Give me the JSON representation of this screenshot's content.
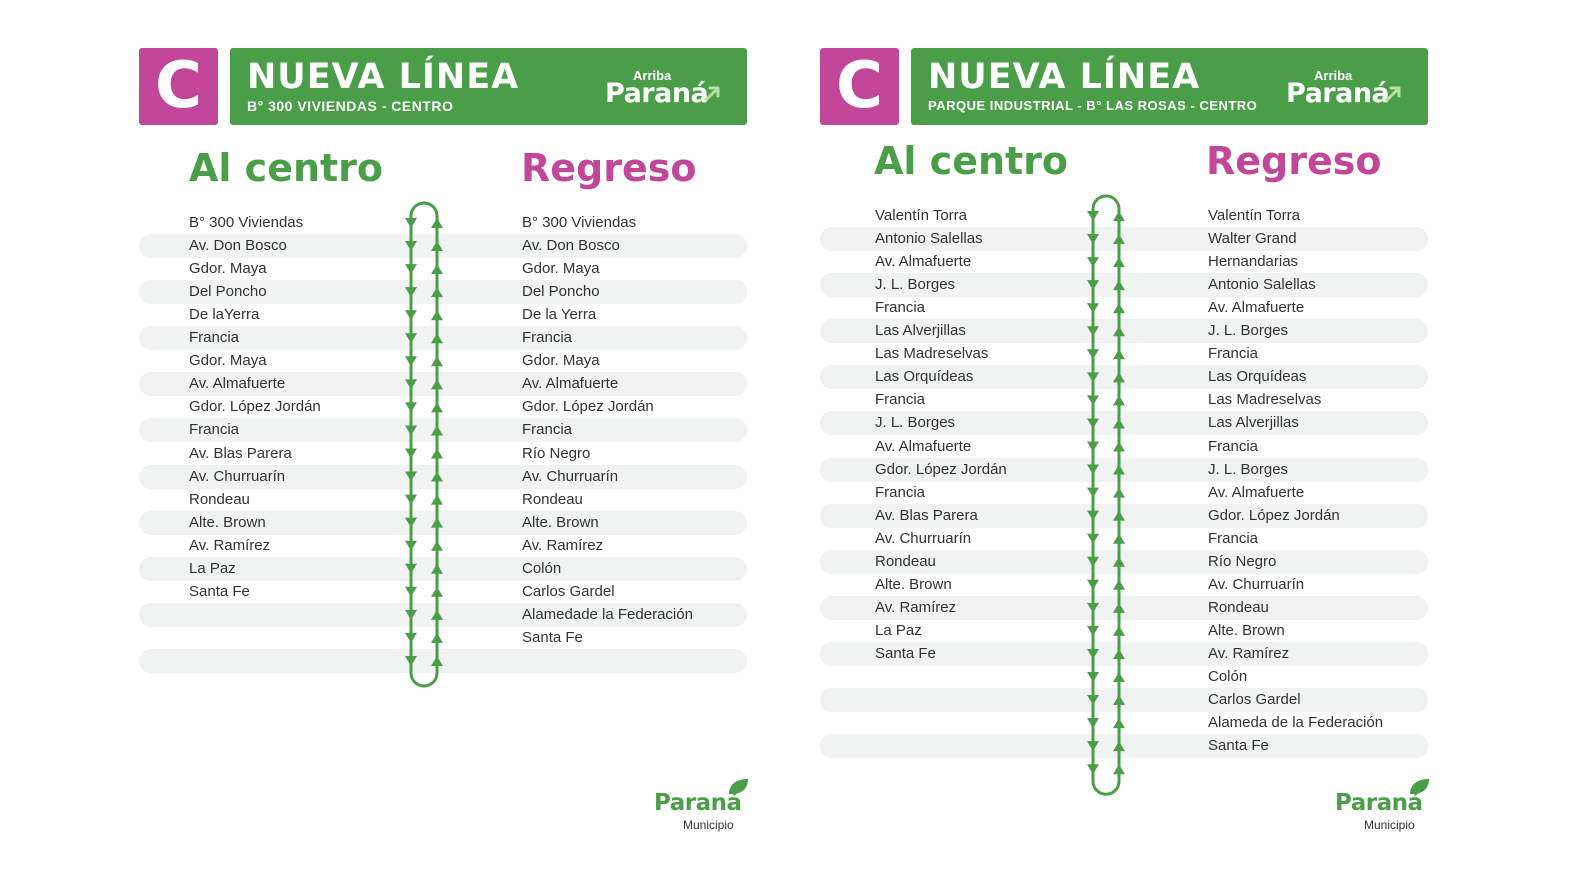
{
  "routes": [
    {
      "badge": "C",
      "title": "NUEVA LÍNEA",
      "subtitle": "B° 300 VIVIENDAS - CENTRO",
      "brand_top": "Arriba",
      "brand_name": "Paraná",
      "outbound_title": "Al centro",
      "return_title": "Regreso",
      "outbound": [
        "B° 300 Viviendas",
        "Av. Don Bosco",
        "Gdor. Maya",
        "Del Poncho",
        "De laYerra",
        "Francia",
        "Gdor. Maya",
        "Av. Almafuerte",
        "Gdor. López Jordán",
        "Francia",
        "Av. Blas Parera",
        "Av. Churruarín",
        "Rondeau",
        "Alte. Brown",
        "Av. Ramírez",
        "La Paz",
        "Santa Fe"
      ],
      "return": [
        "B° 300 Viviendas",
        "Av. Don Bosco",
        "Gdor. Maya",
        "Del Poncho",
        "De la Yerra",
        "Francia",
        "Gdor. Maya",
        "Av. Almafuerte",
        "Gdor. López Jordán",
        "Francia",
        "Río Negro",
        "Av. Churruarín",
        "Rondeau",
        "Alte. Brown",
        "Av. Ramírez",
        "Colón",
        "Carlos Gardel",
        "Alamedade la Federación",
        "Santa Fe"
      ],
      "footer_name": "Paraná",
      "footer_sub": "Municipio"
    },
    {
      "badge": "C",
      "title": "NUEVA LÍNEA",
      "subtitle": "PARQUE INDUSTRIAL - B° LAS ROSAS - CENTRO",
      "brand_top": "Arriba",
      "brand_name": "Paraná",
      "outbound_title": "Al centro",
      "return_title": "Regreso",
      "outbound": [
        "Valentín Torra",
        "Antonio Salellas",
        "Av. Almafuerte",
        "J. L. Borges",
        "Francia",
        "Las Alverjillas",
        "Las Madreselvas",
        "Las Orquídeas",
        "Francia",
        "J. L. Borges",
        "Av. Almafuerte",
        "Gdor. López Jordán",
        "Francia",
        "Av. Blas Parera",
        "Av. Churruarín",
        "Rondeau",
        "Alte. Brown",
        "Av. Ramírez",
        "La Paz",
        "Santa Fe"
      ],
      "return": [
        "Valentín Torra",
        "Walter Grand",
        "Hernandarias",
        "Antonio Salellas",
        "Av. Almafuerte",
        "J. L. Borges",
        "Francia",
        "Las Orquídeas",
        "Las Madreselvas",
        "Las Alverjillas",
        "Francia",
        "J. L. Borges",
        "Av. Almafuerte",
        "Gdor. López Jordán",
        "Francia",
        "Río Negro",
        "Av. Churruarín",
        "Rondeau",
        "Alte. Brown",
        "Av. Ramírez",
        "Colón",
        "Carlos Gardel",
        "Alameda de la Federación",
        "Santa Fe"
      ],
      "footer_name": "Paraná",
      "footer_sub": "Municipio"
    }
  ],
  "colors": {
    "green": "#4a9e48",
    "pink": "#c2479b",
    "stripe": "#f1f2f2"
  },
  "icons": [
    "route-loop-arrows-icon",
    "arrow-up-right-icon",
    "leaf-icon"
  ]
}
